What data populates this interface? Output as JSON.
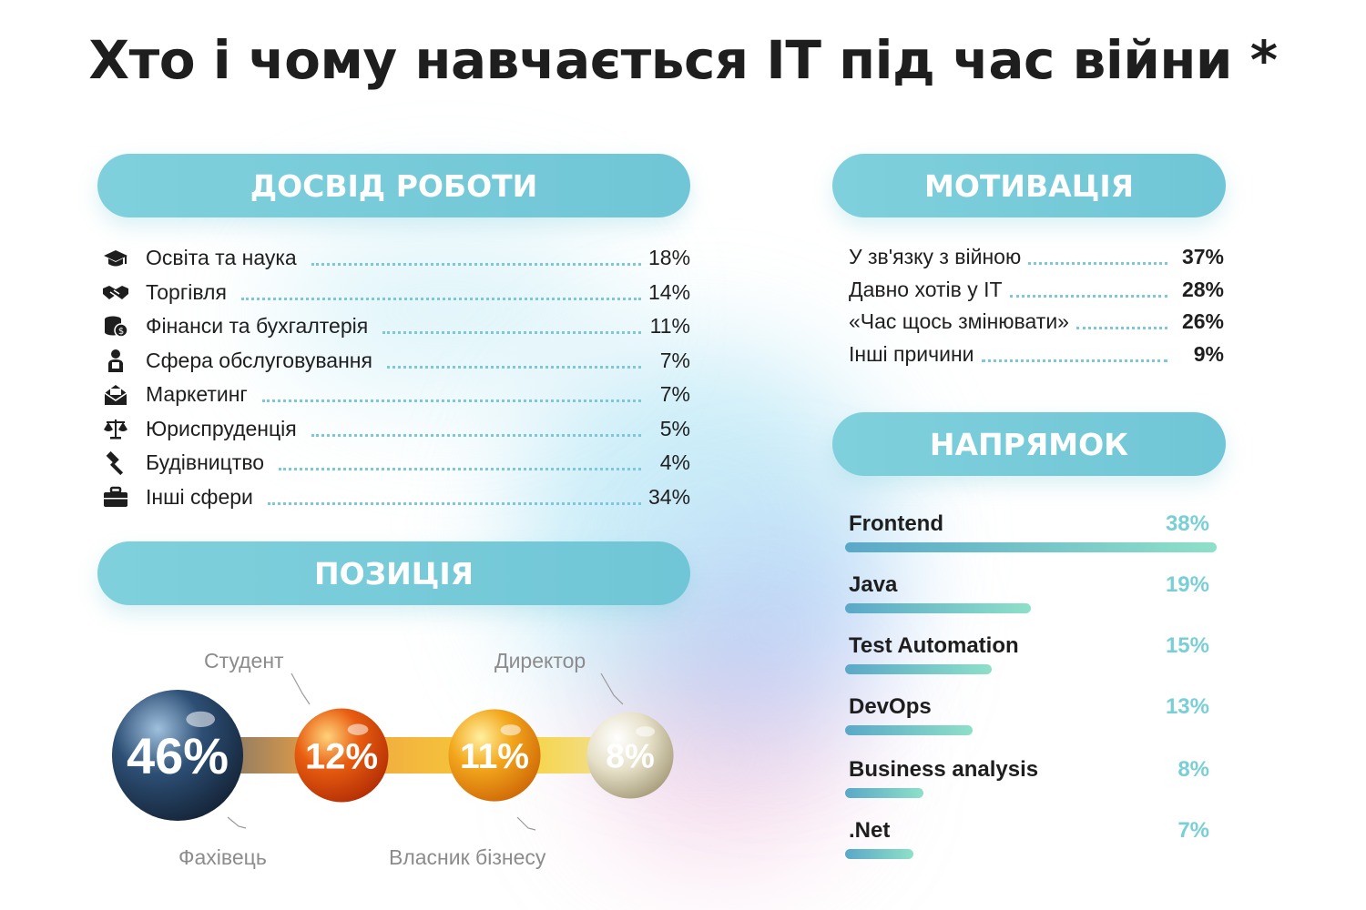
{
  "title": "Хто і чому навчається IT під час війни *",
  "sections": {
    "experience": "ДОСВІД РОБОТИ",
    "position": "ПОЗИЦІЯ",
    "motivation": "МОТИВАЦІЯ",
    "direction": "НАПРЯМОК"
  },
  "experience": [
    {
      "icon": "graduation-cap-icon",
      "label": "Освіта та наука",
      "value": "18%"
    },
    {
      "icon": "handshake-icon",
      "label": "Торгівля",
      "value": "14%"
    },
    {
      "icon": "coins-icon",
      "label": "Фінанси та бухгалтерія",
      "value": "11%"
    },
    {
      "icon": "worker-icon",
      "label": "Сфера обслуговування",
      "value": "7%"
    },
    {
      "icon": "envelope-icon",
      "label": "Маркетинг",
      "value": "7%"
    },
    {
      "icon": "scales-icon",
      "label": "Юриспруденція",
      "value": "5%"
    },
    {
      "icon": "hammer-icon",
      "label": "Будівництво",
      "value": "4%"
    },
    {
      "icon": "briefcase-icon",
      "label": "Інші сфери",
      "value": "34%"
    }
  ],
  "motivation": [
    {
      "label": "У зв'язку з війною",
      "value": "37%"
    },
    {
      "label": "Давно хотів у IT",
      "value": "28%"
    },
    {
      "label": "«Час щось змінювати»",
      "value": "26%"
    },
    {
      "label": "Інші причини",
      "value": "9%"
    }
  ],
  "position": [
    {
      "label": "Фахівець",
      "value": "46%",
      "color": "#2d4f75"
    },
    {
      "label": "Студент",
      "value": "12%",
      "color": "#e85d10"
    },
    {
      "label": "Власник бізнесу",
      "value": "11%",
      "color": "#f3a71c"
    },
    {
      "label": "Директор",
      "value": "8%",
      "color": "#d9d2b6"
    }
  ],
  "direction": [
    {
      "label": "Frontend",
      "value": "38%"
    },
    {
      "label": "Java",
      "value": "19%"
    },
    {
      "label": "Test Automation",
      "value": "15%"
    },
    {
      "label": "DevOps",
      "value": "13%"
    },
    {
      "label": "Business analysis",
      "value": "8%"
    },
    {
      "label": ".Net",
      "value": "7%"
    }
  ],
  "colors": {
    "accent": "#75cbd8",
    "value_text": "#79cfd6"
  },
  "chart_data": [
    {
      "type": "table",
      "title": "ДОСВІД РОБОТИ",
      "categories": [
        "Освіта та наука",
        "Торгівля",
        "Фінанси та бухгалтерія",
        "Сфера обслуговування",
        "Маркетинг",
        "Юриспруденція",
        "Будівництво",
        "Інші сфери"
      ],
      "values": [
        18,
        14,
        11,
        7,
        7,
        5,
        4,
        34
      ]
    },
    {
      "type": "table",
      "title": "МОТИВАЦІЯ",
      "categories": [
        "У зв'язку з війною",
        "Давно хотів у IT",
        "«Час щось змінювати»",
        "Інші причини"
      ],
      "values": [
        37,
        28,
        26,
        9
      ]
    },
    {
      "type": "bar",
      "title": "НАПРЯМОК",
      "categories": [
        "Frontend",
        "Java",
        "Test Automation",
        "DevOps",
        "Business analysis",
        ".Net"
      ],
      "values": [
        38,
        19,
        15,
        13,
        8,
        7
      ]
    },
    {
      "type": "scatter",
      "title": "ПОЗИЦІЯ",
      "categories": [
        "Фахівець",
        "Студент",
        "Власник бізнесу",
        "Директор"
      ],
      "values": [
        46,
        12,
        11,
        8
      ]
    }
  ]
}
